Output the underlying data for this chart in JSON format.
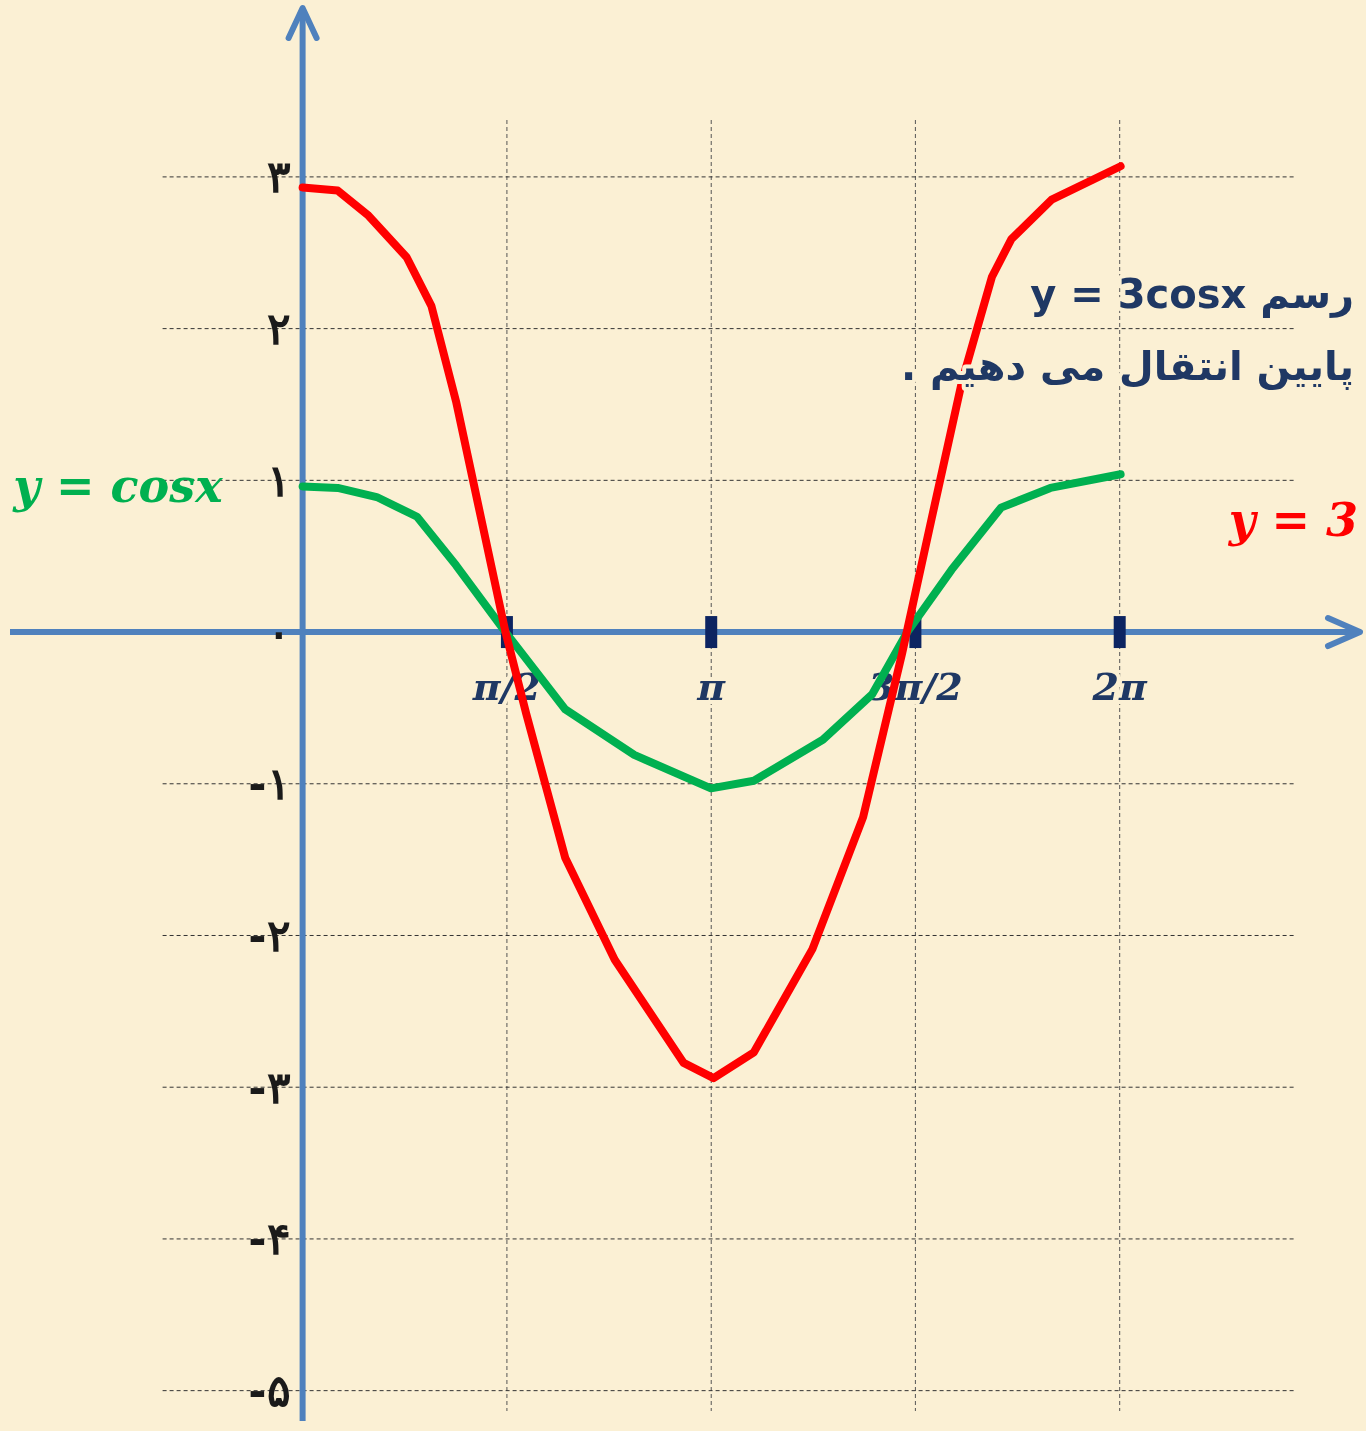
{
  "chart_data": {
    "type": "line",
    "xlim": [
      -2.25,
      8.1
    ],
    "ylim": [
      -5.2,
      4.1
    ],
    "xticks": [
      {
        "value": 1.571,
        "label": "π/2"
      },
      {
        "value": 3.142,
        "label": "π"
      },
      {
        "value": 4.712,
        "label": "3π/2"
      },
      {
        "value": 6.283,
        "label": "2π"
      }
    ],
    "yticks": [
      {
        "value": 3,
        "label": "۳"
      },
      {
        "value": 2,
        "label": "۲"
      },
      {
        "value": 1,
        "label": "۱"
      },
      {
        "value": 0,
        "label": "۰"
      },
      {
        "value": -1,
        "label": "-۱"
      },
      {
        "value": -2,
        "label": "-۲"
      },
      {
        "value": -3,
        "label": "-۳"
      },
      {
        "value": -4,
        "label": "-۴"
      },
      {
        "value": -5,
        "label": "-۵"
      }
    ],
    "grid": true,
    "series": [
      {
        "name": "y = cosx",
        "color": "#00b050",
        "x": [
          0,
          0.27,
          0.57,
          0.88,
          1.18,
          1.56,
          2.02,
          2.55,
          3.14,
          3.47,
          4.0,
          4.38,
          4.65,
          4.99,
          5.37,
          5.75,
          6.29
        ],
        "values": [
          0.96,
          0.95,
          0.89,
          0.76,
          0.44,
          0,
          -0.51,
          -0.81,
          -1.03,
          -0.98,
          -0.71,
          -0.41,
          0,
          0.41,
          0.82,
          0.95,
          1.04
        ]
      },
      {
        "name": "y = 3",
        "color": "#ff0000",
        "x": [
          0,
          0.27,
          0.5,
          0.8,
          0.99,
          1.18,
          1.37,
          1.56,
          1.72,
          2.02,
          2.4,
          2.93,
          3.16,
          3.47,
          3.92,
          4.31,
          4.61,
          4.84,
          5.07,
          5.3,
          5.45,
          5.76,
          6.29
        ],
        "values": [
          2.93,
          2.91,
          2.75,
          2.47,
          2.15,
          1.52,
          0.76,
          0,
          -0.54,
          -1.49,
          -2.16,
          -2.84,
          -2.94,
          -2.77,
          -2.09,
          -1.22,
          -0.14,
          0.76,
          1.65,
          2.34,
          2.59,
          2.85,
          3.07
        ]
      }
    ],
    "annotations": [
      "رسم   y = 3cosx",
      "پایین انتقال  می دهیم ."
    ]
  }
}
